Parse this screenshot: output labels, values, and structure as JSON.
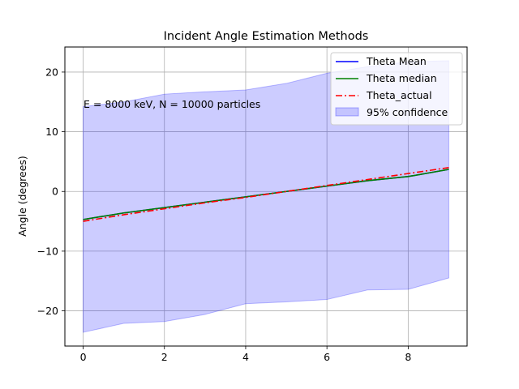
{
  "chart_data": {
    "type": "line",
    "title": "Incident Angle Estimation Methods",
    "xlabel": "",
    "ylabel": "Angle (degrees)",
    "annotation": "E = 8000 keV, N = 10000 particles",
    "xlim": [
      -0.45,
      9.45
    ],
    "ylim": [
      -25.9,
      24.2
    ],
    "xticks": [
      0,
      2,
      4,
      6,
      8
    ],
    "yticks": [
      -20,
      -10,
      0,
      10,
      20
    ],
    "grid": true,
    "legend_position": "top-right",
    "x": [
      0,
      1,
      2,
      3,
      4,
      5,
      6,
      7,
      8,
      9
    ],
    "series": [
      {
        "name": "Theta Mean",
        "style": "solid",
        "color": "#0000ff",
        "values": [
          -4.7,
          -3.6,
          -2.7,
          -1.8,
          -0.9,
          0.0,
          0.9,
          1.8,
          2.5,
          3.7
        ]
      },
      {
        "name": "Theta median",
        "style": "solid",
        "color": "#008000",
        "values": [
          -4.7,
          -3.6,
          -2.7,
          -1.8,
          -0.9,
          0.0,
          0.9,
          1.8,
          2.5,
          3.7
        ]
      },
      {
        "name": "Theta_actual",
        "style": "dashdot",
        "color": "#ff0000",
        "values": [
          -5.0,
          -3.9,
          -2.9,
          -1.9,
          -1.0,
          0.0,
          1.0,
          2.0,
          3.0,
          4.0
        ]
      }
    ],
    "confidence_band": {
      "name": "95% confidence",
      "color": "#0000ff",
      "opacity": 0.2,
      "upper": [
        14.2,
        15.0,
        16.3,
        16.7,
        17.0,
        18.1,
        19.8,
        20.9,
        21.7,
        21.9
      ],
      "lower": [
        -23.6,
        -22.1,
        -21.8,
        -20.6,
        -18.8,
        -18.5,
        -18.1,
        -16.5,
        -16.4,
        -14.5
      ]
    }
  }
}
